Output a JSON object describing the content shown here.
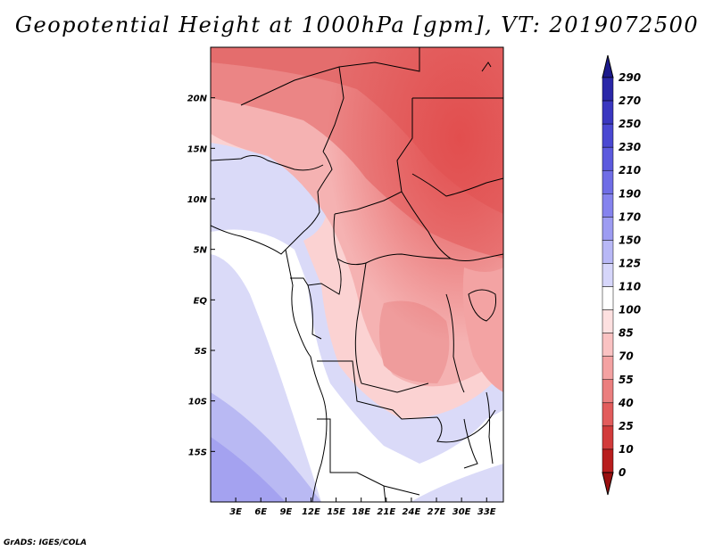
{
  "title": "Geopotential Height at 1000hPa [gpm], VT: 2019072500",
  "credit": "GrADS: IGES/COLA",
  "map": {
    "lon_range": [
      0,
      35
    ],
    "lat_range": [
      -20,
      25
    ],
    "lon_ticks": [
      "3E",
      "6E",
      "9E",
      "12E",
      "15E",
      "18E",
      "21E",
      "24E",
      "27E",
      "30E",
      "33E"
    ],
    "lat_ticks": [
      "20N",
      "15N",
      "10N",
      "5N",
      "EQ",
      "5S",
      "10S",
      "15S"
    ]
  },
  "colorbar": {
    "labels": [
      "290",
      "270",
      "250",
      "230",
      "210",
      "190",
      "170",
      "150",
      "125",
      "110",
      "100",
      "85",
      "70",
      "55",
      "40",
      "25",
      "10",
      "0"
    ],
    "colors": [
      "#1c1a8c",
      "#2a27a8",
      "#3a37c0",
      "#4a48d2",
      "#5c5ade",
      "#6f6de6",
      "#8583ee",
      "#9d9cf2",
      "#b8b8f6",
      "#d6d6fa",
      "#ffffff",
      "#fde0e0",
      "#fac2c2",
      "#f4a2a2",
      "#eb7f7f",
      "#e25c5c",
      "#d23b3b",
      "#b81e1e",
      "#9a1010"
    ]
  },
  "colors": {
    "land_mid": "#f3a7a7",
    "ocean": "#d9d9f7",
    "coast": "#000000"
  }
}
